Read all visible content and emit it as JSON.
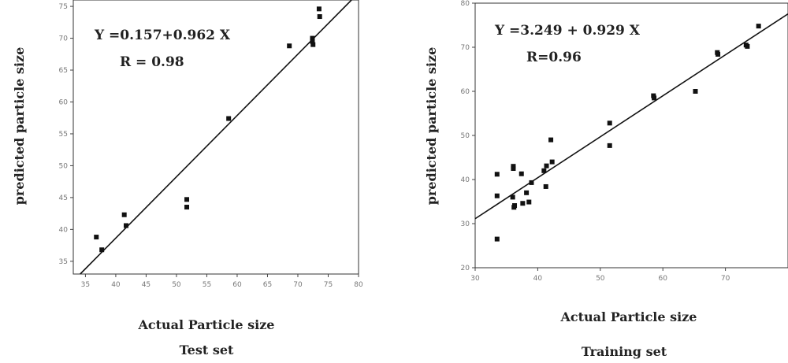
{
  "chart_data": [
    {
      "type": "scatter",
      "title": "Test set",
      "xlabel": "Actual Particle size",
      "ylabel": "predicted particle size",
      "equation": "Y =0.157+0.962 X",
      "r_text": "R = 0.98",
      "fit": {
        "intercept": 0.157,
        "slope": 0.962
      },
      "xlim": [
        33,
        80
      ],
      "ylim": [
        33,
        76
      ],
      "xticks": [
        35,
        40,
        45,
        50,
        55,
        60,
        65,
        70,
        75,
        80
      ],
      "xtick_labels": [
        "35",
        "40",
        "45",
        "50",
        "55",
        "60",
        "65",
        "70",
        "75",
        "80"
      ],
      "yticks": [
        35,
        40,
        45,
        50,
        55,
        60,
        65,
        70,
        75
      ],
      "ytick_labels": [
        "35",
        "40",
        "45",
        "50",
        "55",
        "60",
        "65",
        "70",
        "75"
      ],
      "x": [
        36.8,
        37.7,
        41.4,
        41.7,
        51.7,
        51.7,
        58.6,
        68.6,
        72.4,
        72.4,
        72.5,
        73.5,
        73.6
      ],
      "y": [
        38.8,
        36.8,
        42.3,
        40.6,
        44.7,
        43.5,
        57.4,
        68.8,
        70.0,
        69.5,
        69.0,
        74.6,
        73.4
      ]
    },
    {
      "type": "scatter",
      "title": "Training set",
      "xlabel": "Actual Particle size",
      "ylabel": "predicted particle size",
      "equation": "Y =3.249 + 0.929 X",
      "r_text": "R=0.96",
      "fit": {
        "intercept": 3.249,
        "slope": 0.929
      },
      "xlim": [
        30,
        80
      ],
      "ylim": [
        20,
        80
      ],
      "xticks": [
        30,
        40,
        50,
        60,
        70
      ],
      "xtick_labels": [
        "30",
        "40",
        "50",
        "60",
        "70"
      ],
      "yticks": [
        20,
        30,
        40,
        50,
        60,
        70,
        80
      ],
      "ytick_labels": [
        "20",
        "30",
        "40",
        "50",
        "60",
        "70",
        "80"
      ],
      "x": [
        33.5,
        33.5,
        33.5,
        36.0,
        36.1,
        36.1,
        36.3,
        36.2,
        37.4,
        37.6,
        38.2,
        38.6,
        39.0,
        41.0,
        41.3,
        41.4,
        42.1,
        42.3,
        51.5,
        51.5,
        58.5,
        58.6,
        65.2,
        68.7,
        68.8,
        73.3,
        73.5,
        75.3
      ],
      "y": [
        41.2,
        36.3,
        26.5,
        36.0,
        42.5,
        43.0,
        34.1,
        33.7,
        41.3,
        34.6,
        37.0,
        34.9,
        39.3,
        42.0,
        38.4,
        43.1,
        49.0,
        44.0,
        52.8,
        47.7,
        59.0,
        58.5,
        60.0,
        68.8,
        68.4,
        70.5,
        70.2,
        74.8
      ]
    }
  ]
}
